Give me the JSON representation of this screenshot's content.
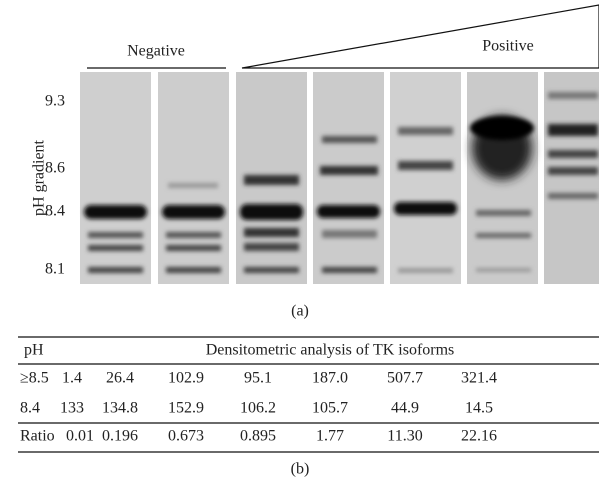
{
  "gel": {
    "negative_label": "Negative",
    "positive_label": "Positive",
    "axis_title": "pH gradient",
    "ticks": [
      "9.3",
      "8.6",
      "8.4",
      "8.1"
    ]
  },
  "captions": {
    "a": "(a)",
    "b": "(b)"
  },
  "table": {
    "header": [
      "pH",
      "Densitometric analysis of TK isoforms"
    ],
    "rows": [
      [
        "≥8.5",
        "1.4",
        "26.4",
        "102.9",
        "95.1",
        "187.0",
        "507.7",
        "321.4"
      ],
      [
        "8.4",
        "133",
        "134.8",
        "152.9",
        "106.2",
        "105.7",
        "44.9",
        "14.5"
      ],
      [
        "Ratio",
        "0.01",
        "0.196",
        "0.673",
        "0.895",
        "1.77",
        "11.30",
        "22.16"
      ]
    ]
  }
}
